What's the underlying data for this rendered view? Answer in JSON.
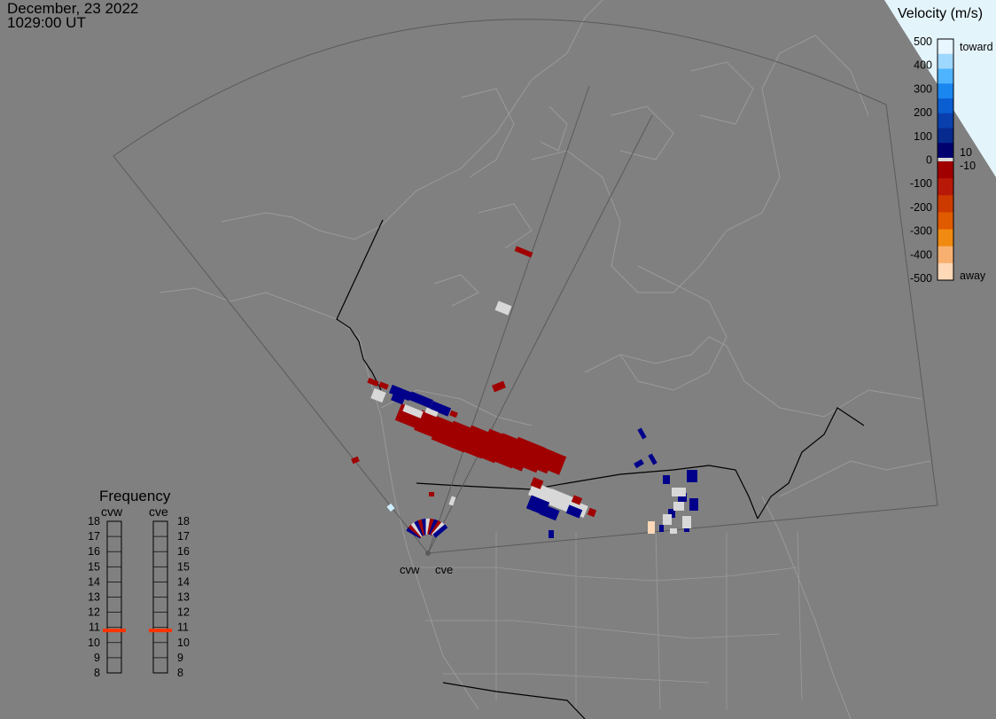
{
  "header": {
    "date": "December, 23 2022",
    "time": "1029:00 UT"
  },
  "velocity_scale": {
    "title": "Velocity (m/s)",
    "ticks": [
      "500",
      "400",
      "300",
      "200",
      "100",
      "0",
      "-100",
      "-200",
      "-300",
      "-400",
      "-500"
    ],
    "inner_pos": "10",
    "inner_neg": "-10",
    "toward_label": "toward",
    "away_label": "away",
    "colors_high_to_low": [
      "#e8f6ff",
      "#9fd8ff",
      "#4fb4ff",
      "#1a86f0",
      "#0a5ed2",
      "#0a3fae",
      "#062a8e",
      "#00006e",
      "#a00000",
      "#b81808",
      "#cc3a00",
      "#e05a00",
      "#f08a10",
      "#f8b070",
      "#ffd8b8"
    ],
    "zero_color": "#d8d8d8"
  },
  "radars": {
    "west": "cvw",
    "east": "cve"
  },
  "frequency": {
    "title": "Frequency",
    "col_west": "cvw",
    "col_east": "cve",
    "ticks": [
      "18",
      "17",
      "16",
      "15",
      "14",
      "13",
      "12",
      "11",
      "10",
      "9",
      "8"
    ],
    "active_mhz_west": 10.8,
    "active_mhz_east": 10.8,
    "marker_color": "#ff3300"
  }
}
